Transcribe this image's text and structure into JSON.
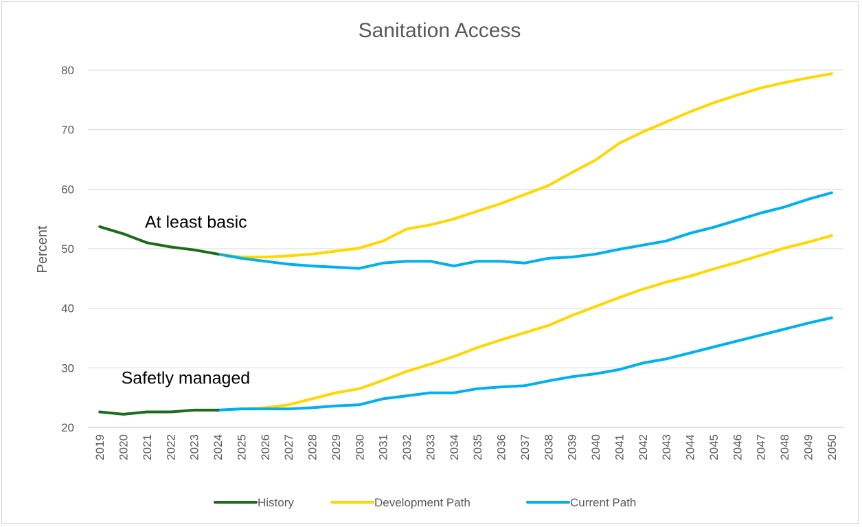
{
  "chart_data": {
    "type": "line",
    "title": "Sanitation Access",
    "ylabel": "Percent",
    "xlabel": "",
    "ylim": [
      20,
      80
    ],
    "yticks": [
      20,
      30,
      40,
      50,
      60,
      70,
      80
    ],
    "grid": true,
    "legend_position": "bottom",
    "x": [
      2019,
      2020,
      2021,
      2022,
      2023,
      2024,
      2025,
      2026,
      2027,
      2028,
      2029,
      2030,
      2031,
      2032,
      2033,
      2034,
      2035,
      2036,
      2037,
      2038,
      2039,
      2040,
      2041,
      2042,
      2043,
      2044,
      2045,
      2046,
      2047,
      2048,
      2049,
      2050
    ],
    "annotations": [
      {
        "text": "At least basic",
        "x": 2021,
        "y": 53.5
      },
      {
        "text": "Safetly managed",
        "x": 2020,
        "y": 27.3
      }
    ],
    "series": [
      {
        "name": "History",
        "color": "#1e6b1e",
        "group": "At least basic",
        "points": [
          [
            2019,
            53.7
          ],
          [
            2020,
            52.5
          ],
          [
            2021,
            51.0
          ],
          [
            2022,
            50.3
          ],
          [
            2023,
            49.8
          ],
          [
            2024,
            49.1
          ]
        ]
      },
      {
        "name": "History",
        "color": "#1e6b1e",
        "group": "Safetly managed",
        "points": [
          [
            2019,
            22.6
          ],
          [
            2020,
            22.2
          ],
          [
            2021,
            22.6
          ],
          [
            2022,
            22.6
          ],
          [
            2023,
            22.9
          ],
          [
            2024,
            22.9
          ]
        ]
      },
      {
        "name": "Development Path",
        "color": "#ffd800",
        "group": "At least basic",
        "points": [
          [
            2024,
            49.1
          ],
          [
            2025,
            48.6
          ],
          [
            2026,
            48.6
          ],
          [
            2027,
            48.8
          ],
          [
            2028,
            49.1
          ],
          [
            2029,
            49.6
          ],
          [
            2030,
            50.1
          ],
          [
            2031,
            51.3
          ],
          [
            2032,
            53.3
          ],
          [
            2033,
            54.0
          ],
          [
            2034,
            55.0
          ],
          [
            2035,
            56.3
          ],
          [
            2036,
            57.6
          ],
          [
            2037,
            59.1
          ],
          [
            2038,
            60.6
          ],
          [
            2039,
            62.8
          ],
          [
            2040,
            64.9
          ],
          [
            2041,
            67.7
          ],
          [
            2042,
            69.6
          ],
          [
            2043,
            71.3
          ],
          [
            2044,
            73.0
          ],
          [
            2045,
            74.5
          ],
          [
            2046,
            75.8
          ],
          [
            2047,
            77.0
          ],
          [
            2048,
            77.9
          ],
          [
            2049,
            78.7
          ],
          [
            2050,
            79.4
          ]
        ]
      },
      {
        "name": "Development Path",
        "color": "#ffd800",
        "group": "Safetly managed",
        "points": [
          [
            2024,
            22.9
          ],
          [
            2025,
            23.1
          ],
          [
            2026,
            23.3
          ],
          [
            2027,
            23.8
          ],
          [
            2028,
            24.8
          ],
          [
            2029,
            25.8
          ],
          [
            2030,
            26.5
          ],
          [
            2031,
            27.9
          ],
          [
            2032,
            29.4
          ],
          [
            2033,
            30.6
          ],
          [
            2034,
            31.9
          ],
          [
            2035,
            33.4
          ],
          [
            2036,
            34.7
          ],
          [
            2037,
            35.9
          ],
          [
            2038,
            37.1
          ],
          [
            2039,
            38.8
          ],
          [
            2040,
            40.3
          ],
          [
            2041,
            41.8
          ],
          [
            2042,
            43.2
          ],
          [
            2043,
            44.4
          ],
          [
            2044,
            45.4
          ],
          [
            2045,
            46.6
          ],
          [
            2046,
            47.7
          ],
          [
            2047,
            48.9
          ],
          [
            2048,
            50.1
          ],
          [
            2049,
            51.1
          ],
          [
            2050,
            52.2
          ]
        ]
      },
      {
        "name": "Current Path",
        "color": "#00b0f0",
        "group": "At least basic",
        "points": [
          [
            2024,
            49.1
          ],
          [
            2025,
            48.4
          ],
          [
            2026,
            47.9
          ],
          [
            2027,
            47.4
          ],
          [
            2028,
            47.1
          ],
          [
            2029,
            46.9
          ],
          [
            2030,
            46.7
          ],
          [
            2031,
            47.6
          ],
          [
            2032,
            47.9
          ],
          [
            2033,
            47.9
          ],
          [
            2034,
            47.1
          ],
          [
            2035,
            47.9
          ],
          [
            2036,
            47.9
          ],
          [
            2037,
            47.6
          ],
          [
            2038,
            48.4
          ],
          [
            2039,
            48.6
          ],
          [
            2040,
            49.1
          ],
          [
            2041,
            49.9
          ],
          [
            2042,
            50.6
          ],
          [
            2043,
            51.3
          ],
          [
            2044,
            52.6
          ],
          [
            2045,
            53.6
          ],
          [
            2046,
            54.8
          ],
          [
            2047,
            56.0
          ],
          [
            2048,
            57.0
          ],
          [
            2049,
            58.3
          ],
          [
            2050,
            59.4
          ]
        ]
      },
      {
        "name": "Current Path",
        "color": "#00b0f0",
        "group": "Safetly managed",
        "points": [
          [
            2024,
            22.9
          ],
          [
            2025,
            23.1
          ],
          [
            2026,
            23.1
          ],
          [
            2027,
            23.1
          ],
          [
            2028,
            23.3
          ],
          [
            2029,
            23.6
          ],
          [
            2030,
            23.8
          ],
          [
            2031,
            24.8
          ],
          [
            2032,
            25.3
          ],
          [
            2033,
            25.8
          ],
          [
            2034,
            25.8
          ],
          [
            2035,
            26.5
          ],
          [
            2036,
            26.8
          ],
          [
            2037,
            27.0
          ],
          [
            2038,
            27.8
          ],
          [
            2039,
            28.5
          ],
          [
            2040,
            29.0
          ],
          [
            2041,
            29.7
          ],
          [
            2042,
            30.8
          ],
          [
            2043,
            31.5
          ],
          [
            2044,
            32.5
          ],
          [
            2045,
            33.5
          ],
          [
            2046,
            34.5
          ],
          [
            2047,
            35.5
          ],
          [
            2048,
            36.5
          ],
          [
            2049,
            37.5
          ],
          [
            2050,
            38.4
          ]
        ]
      }
    ],
    "legend": [
      {
        "name": "History",
        "color": "#1e6b1e"
      },
      {
        "name": "Development Path",
        "color": "#ffd800"
      },
      {
        "name": "Current Path",
        "color": "#00b0f0"
      }
    ]
  }
}
